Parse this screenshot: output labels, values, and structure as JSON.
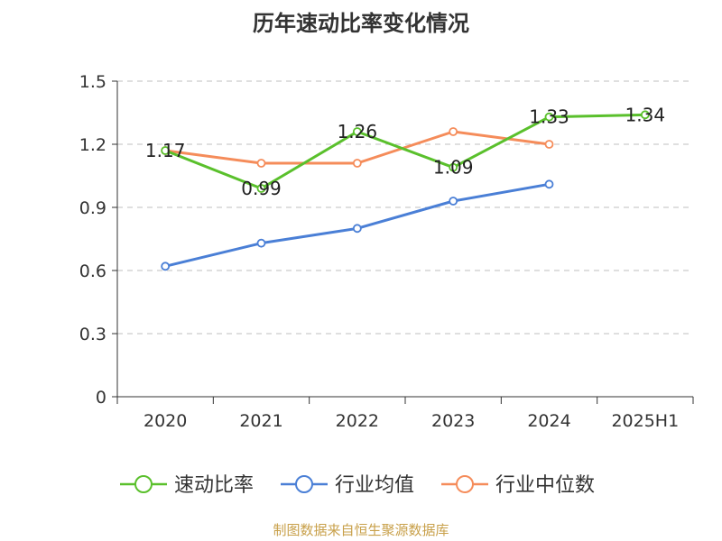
{
  "chart_data": {
    "type": "line",
    "title": "历年速动比率变化情况",
    "categories": [
      "2020",
      "2021",
      "2022",
      "2023",
      "2024",
      "2025H1"
    ],
    "ylim": [
      0,
      1.5
    ],
    "yticks": [
      "0",
      "0.3",
      "0.6",
      "0.9",
      "1.2",
      "1.5"
    ],
    "grid": true,
    "legend_position": "bottom",
    "series": [
      {
        "name": "速动比率",
        "color": "#5ac02c",
        "labels": true,
        "values": [
          1.17,
          0.99,
          1.26,
          1.09,
          1.33,
          1.34
        ]
      },
      {
        "name": "行业均值",
        "color": "#4a7fd6",
        "labels": false,
        "values": [
          0.62,
          0.73,
          0.8,
          0.93,
          1.01,
          null
        ]
      },
      {
        "name": "行业中位数",
        "color": "#f58c5a",
        "labels": false,
        "values": [
          1.17,
          1.11,
          1.11,
          1.26,
          1.2,
          null
        ]
      }
    ]
  },
  "source_text": "制图数据来自恒生聚源数据库"
}
